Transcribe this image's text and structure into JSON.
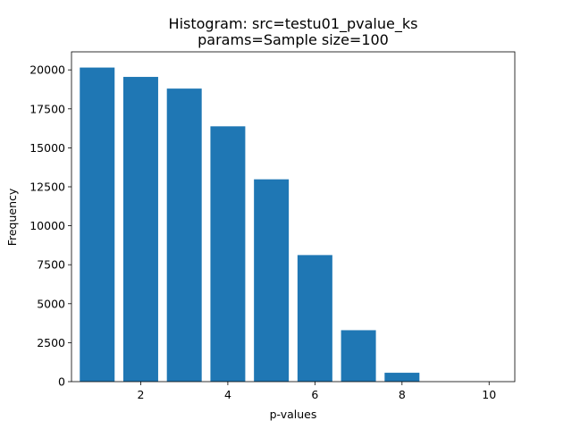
{
  "chart_data": {
    "type": "bar",
    "title_line1": "Histogram: src=testu01_pvalue_ks",
    "title_line2": "params=Sample size=100",
    "xlabel": "p-values",
    "ylabel": "Frequency",
    "x": [
      1,
      2,
      3,
      4,
      5,
      6,
      7,
      8,
      9,
      10
    ],
    "values": [
      20150,
      19550,
      18800,
      16380,
      12980,
      8120,
      3300,
      570,
      0,
      0
    ],
    "bar_width": 0.8,
    "xlim": [
      0.41,
      10.59
    ],
    "ylim": [
      0,
      21158
    ],
    "xticks": [
      2,
      4,
      6,
      8,
      10
    ],
    "xtick_labels": [
      "2",
      "4",
      "6",
      "8",
      "10"
    ],
    "yticks": [
      0,
      2500,
      5000,
      7500,
      10000,
      12500,
      15000,
      17500,
      20000
    ],
    "ytick_labels": [
      "0",
      "2500",
      "5000",
      "7500",
      "10000",
      "12500",
      "15000",
      "17500",
      "20000"
    ],
    "bar_color": "#1f77b4",
    "grid": false,
    "legend": "none"
  }
}
